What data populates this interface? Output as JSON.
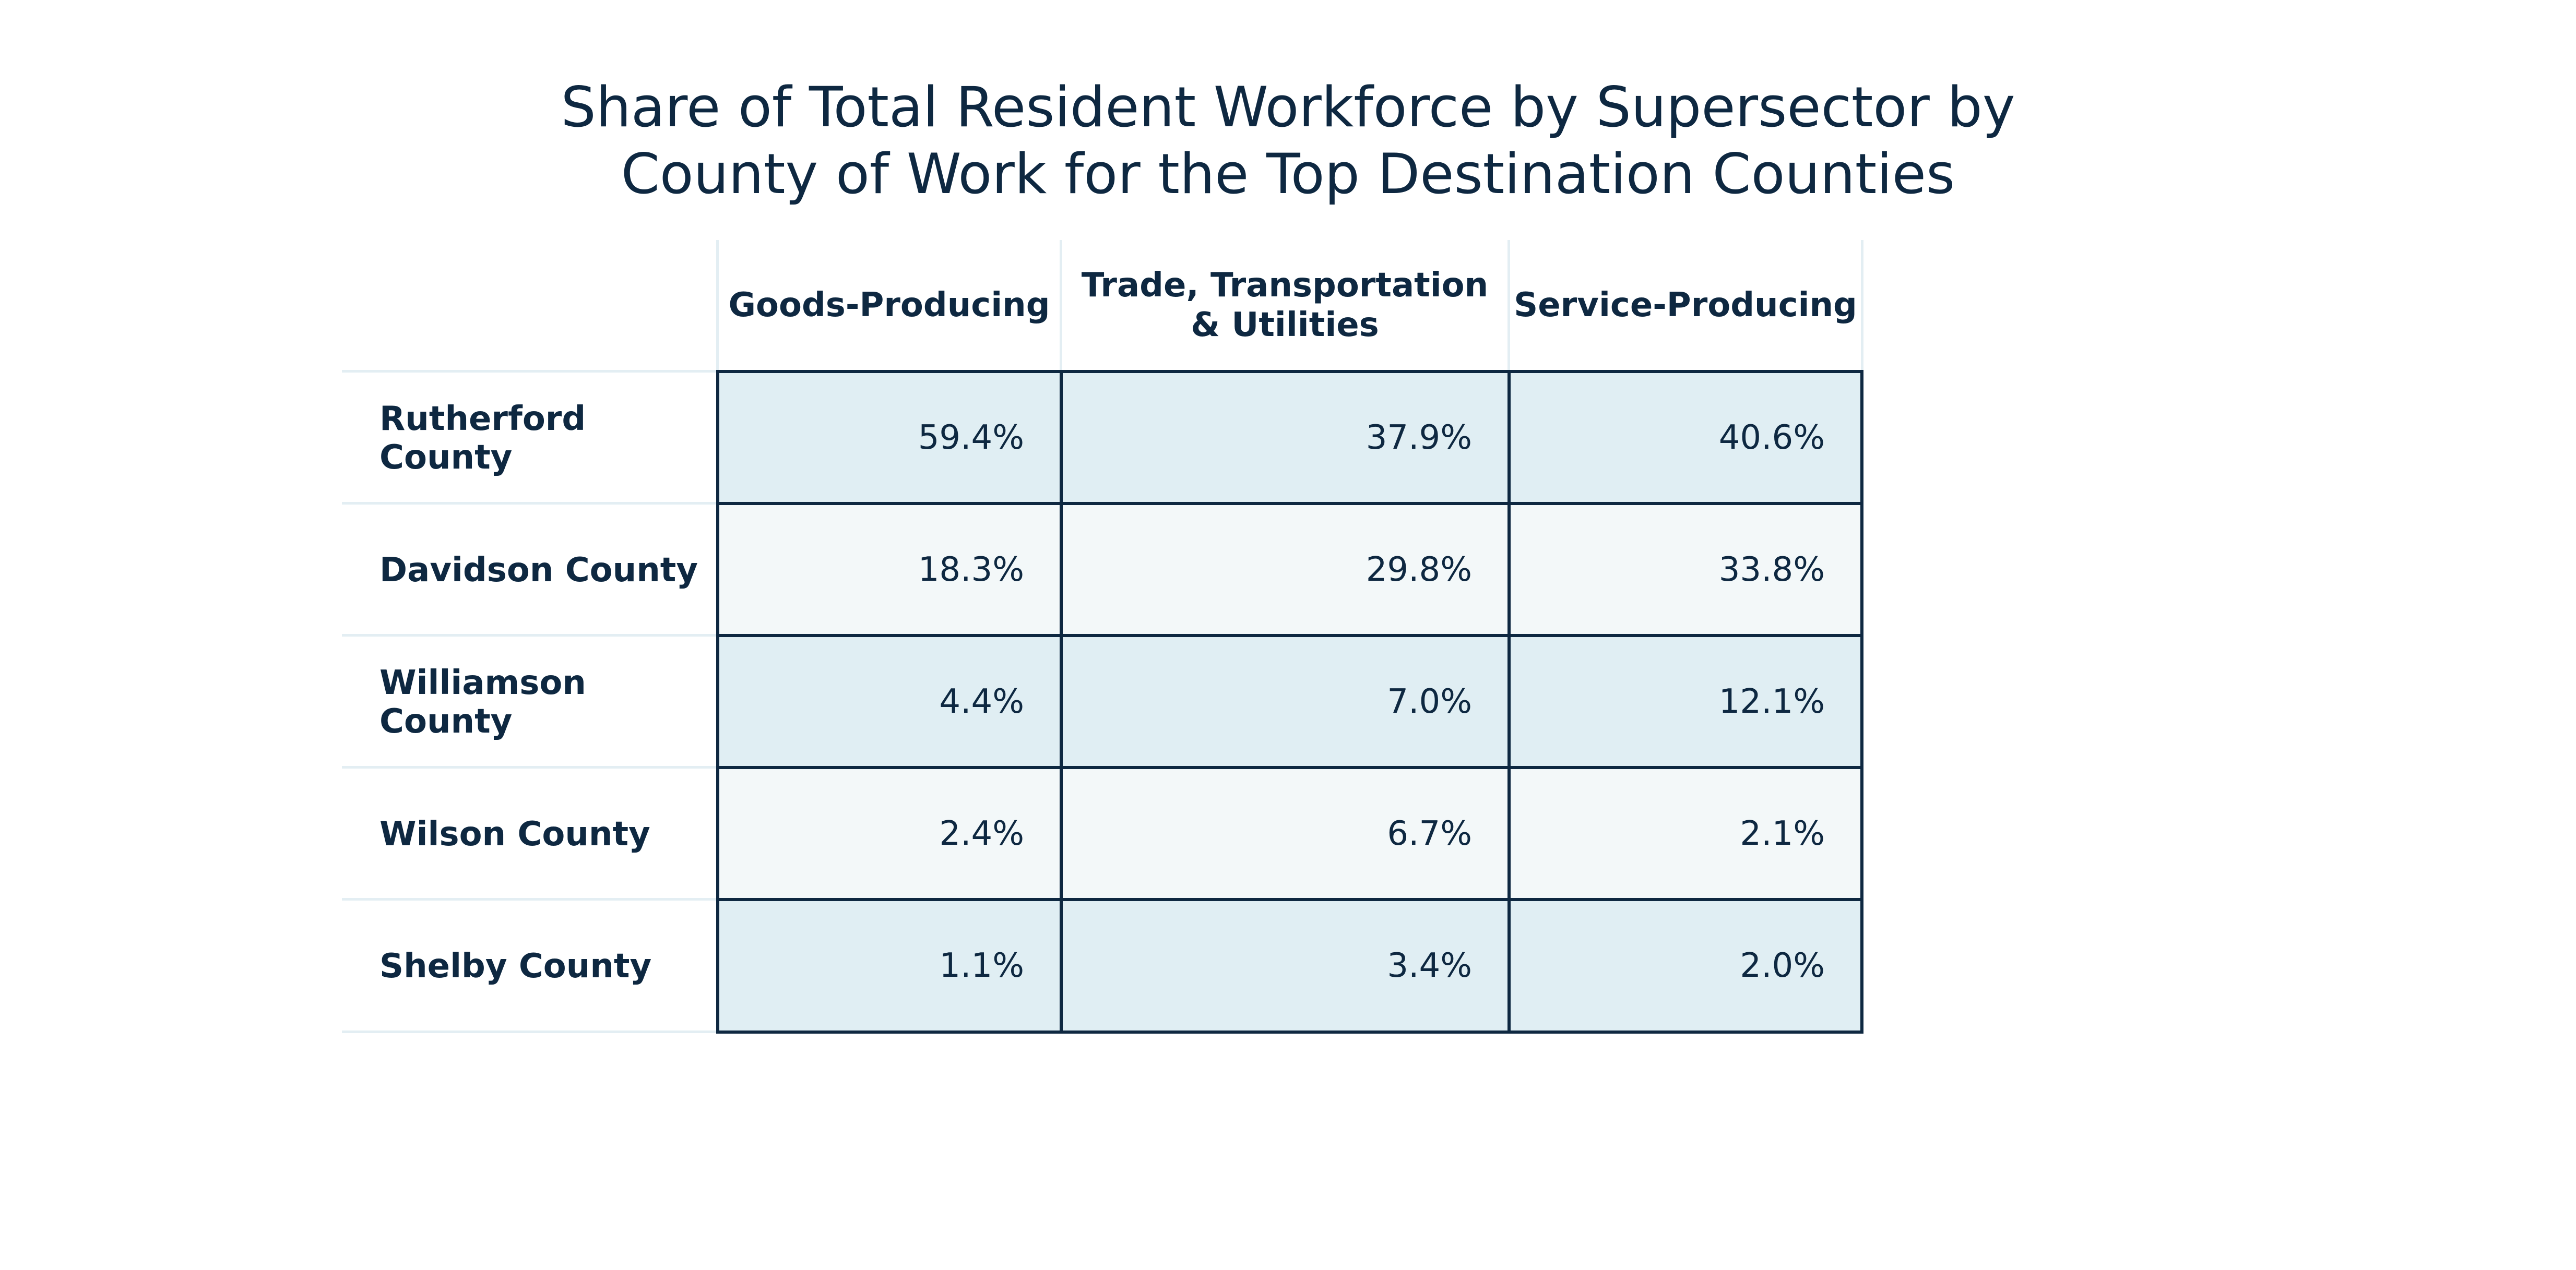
{
  "chart_data": {
    "type": "table",
    "title": "Share of Total Resident Workforce by Supersector by County of Work for the Top Destination Counties",
    "title_lines": [
      "Share of Total Resident Workforce by Supersector by",
      "County of Work for the Top Destination Counties"
    ],
    "columns": [
      {
        "label": "Goods-Producing",
        "lines": [
          "Goods-Producing"
        ]
      },
      {
        "label": "Trade, Transportation & Utilities",
        "lines": [
          "Trade, Transportation",
          "& Utilities"
        ]
      },
      {
        "label": "Service-Producing",
        "lines": [
          "Service-Producing"
        ]
      }
    ],
    "rows": [
      {
        "label": "Rutherford County",
        "values": [
          "59.4%",
          "37.9%",
          "40.6%"
        ]
      },
      {
        "label": "Davidson County",
        "values": [
          "18.3%",
          "29.8%",
          "33.8%"
        ]
      },
      {
        "label": "Williamson County",
        "values": [
          "4.4%",
          "7.0%",
          "12.1%"
        ]
      },
      {
        "label": "Wilson County",
        "values": [
          "2.4%",
          "6.7%",
          "2.1%"
        ]
      },
      {
        "label": "Shelby County",
        "values": [
          "1.1%",
          "3.4%",
          "2.0%"
        ]
      }
    ],
    "colors": {
      "text": "#0e2841",
      "shaded_row": "#e0eef3",
      "light_row": "#f3f8f9",
      "border": "#0e2841",
      "separator": "#e3eef3"
    }
  }
}
